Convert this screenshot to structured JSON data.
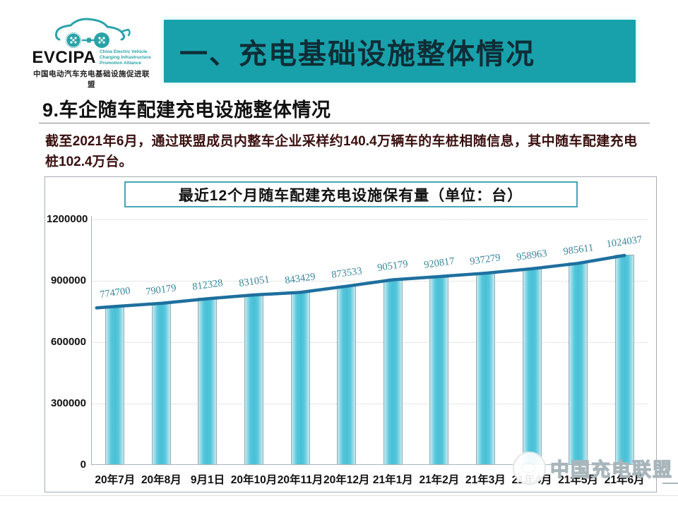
{
  "logo": {
    "abbr": "EVCIPA",
    "english": [
      "China Electric Vehicle",
      "Charging Infrastructure",
      "Promotion Alliance"
    ],
    "chinese": "中国电动汽车充电基础设施促进联盟"
  },
  "banner": {
    "title": "一、充电基础设施整体情况",
    "bg_color": "#18a1ab"
  },
  "section": {
    "title": "9.车企随车配建充电设施整体情况"
  },
  "summary": {
    "text": "截至2021年6月，通过联盟成员内整车企业采样约140.4万辆车的车桩相随信息，其中随车配建充电桩102.4万台。"
  },
  "watermark": {
    "text": "中国充电联盟"
  },
  "chart_data": {
    "type": "bar",
    "line_overlay": true,
    "title": "最近12个月随车配建充电设施保有量（单位：台）",
    "categories": [
      "20年7月",
      "20年8月",
      "9月1日",
      "20年10月",
      "20年11月",
      "20年12月",
      "21年1月",
      "21年2月",
      "21年3月",
      "21年4月",
      "21年5月",
      "21年6月"
    ],
    "values": [
      774700,
      790179,
      812328,
      831051,
      843429,
      873533,
      905179,
      920817,
      937279,
      958963,
      985611,
      1024037
    ],
    "ylim": [
      0,
      1200000
    ],
    "y_ticks": [
      0,
      300000,
      600000,
      900000,
      1200000
    ],
    "grid": "dotted horizontal",
    "legend": "none",
    "colors": {
      "bar": "#55c6db",
      "bar_edge": "#97acb1",
      "line": "#1e6f9e",
      "data_label": "#38879c"
    }
  }
}
